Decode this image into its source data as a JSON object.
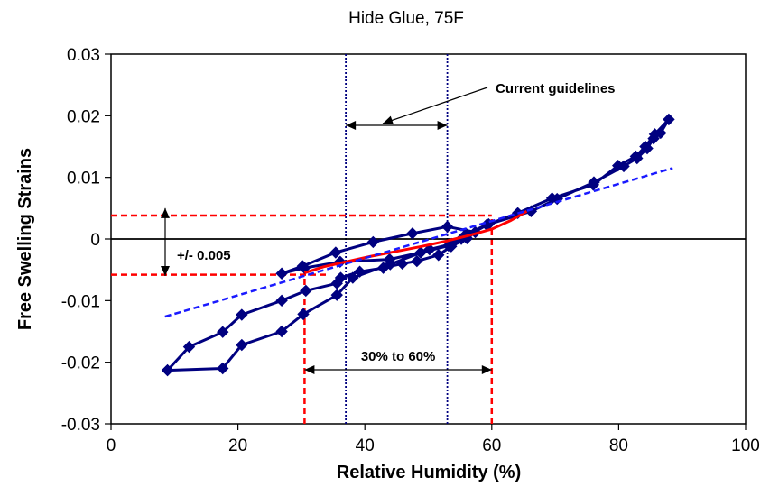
{
  "chart_data": {
    "type": "line",
    "title": "Hide Glue, 75F",
    "xlabel": "Relative Humidity (%)",
    "ylabel": "Free Swelling Strains",
    "xlim": [
      0,
      100
    ],
    "ylim": [
      -0.03,
      0.03
    ],
    "x_ticks": [
      "0",
      "20",
      "40",
      "60",
      "80",
      "100"
    ],
    "y_ticks": [
      "0.03",
      "0.02",
      "0.01",
      "0",
      "-0.01",
      "-0.02",
      "-0.03"
    ],
    "grid": false,
    "legend": "none",
    "series": [
      {
        "color": "#000080",
        "style": "line-with-diamond-markers",
        "x": [
          8.9,
          12.3,
          17.6,
          20.6,
          26.9,
          30.7,
          35.6,
          36.2,
          39.2,
          42.9,
          45.9,
          48.2,
          51.6,
          53.6,
          56.1,
          57.4,
          53.0,
          47.5,
          41.3,
          35.4,
          30.2,
          26.9,
          30.5,
          36.1,
          43.9,
          48.8,
          53.2,
          56.0,
          59.2,
          66.2,
          70.3,
          76.1,
          80.8,
          82.9,
          84.5,
          85.5,
          86.6,
          87.9,
          85.7,
          84.2,
          82.7,
          79.9,
          76.0,
          69.5,
          64.1,
          59.5,
          55.2,
          53.7,
          50.2,
          44.0,
          38.1,
          35.6,
          30.3,
          26.9,
          20.6,
          17.6,
          8.9
        ],
        "y": [
          -0.0213,
          -0.0175,
          -0.0151,
          -0.0123,
          -0.01,
          -0.0084,
          -0.0072,
          -0.0063,
          -0.0053,
          -0.0047,
          -0.004,
          -0.0036,
          -0.0026,
          -0.0012,
          0.0001,
          0.0011,
          0.002,
          0.0009,
          -0.0005,
          -0.0022,
          -0.0044,
          -0.0056,
          -0.0047,
          -0.0037,
          -0.0033,
          -0.0022,
          -0.0011,
          0.0008,
          0.0023,
          0.0045,
          0.0065,
          0.0092,
          0.0118,
          0.0131,
          0.0147,
          0.0163,
          0.0172,
          0.0194,
          0.017,
          0.015,
          0.0134,
          0.0119,
          0.0088,
          0.0066,
          0.0042,
          0.0024,
          0.0,
          -0.0008,
          -0.0017,
          -0.0041,
          -0.0063,
          -0.0091,
          -0.0122,
          -0.015,
          -0.0172,
          -0.021,
          -0.0213
        ]
      },
      {
        "color": "#ff0000",
        "style": "line",
        "x": [
          30.5,
          33.5,
          37.0,
          41.0,
          45.0,
          49.0,
          53.0,
          56.5,
          60.0,
          63.0,
          65.5
        ],
        "y": [
          -0.0055,
          -0.0045,
          -0.0037,
          -0.0028,
          -0.002,
          -0.0012,
          -0.0003,
          0.0006,
          0.0016,
          0.003,
          0.0045
        ]
      },
      {
        "color": "#1a1aff",
        "style": "dashed-linear-fit",
        "x": [
          8.5,
          88.5
        ],
        "y": [
          -0.0126,
          0.0115
        ]
      }
    ],
    "reference_lines": [
      {
        "orientation": "vertical",
        "x": 37,
        "color": "#000080",
        "style": "dotted"
      },
      {
        "orientation": "vertical",
        "x": 53,
        "color": "#000080",
        "style": "dotted"
      },
      {
        "orientation": "vertical",
        "x": 30.5,
        "ymin": -0.03,
        "ymax": -0.0055,
        "color": "#ff0000",
        "style": "dashed"
      },
      {
        "orientation": "vertical",
        "x": 60,
        "ymin": -0.03,
        "ymax": 0.0038,
        "color": "#ff0000",
        "style": "dashed"
      },
      {
        "orientation": "horizontal",
        "y": 0.0038,
        "xmin": 0,
        "xmax": 60,
        "color": "#ff0000",
        "style": "dashed"
      },
      {
        "orientation": "horizontal",
        "y": -0.0058,
        "xmin": 0,
        "xmax": 34,
        "color": "#ff0000",
        "style": "dashed"
      },
      {
        "orientation": "horizontal",
        "y": 0,
        "xmin": 0,
        "xmax": 100,
        "color": "#000000",
        "style": "solid"
      }
    ],
    "annotations": [
      {
        "text": "Current guidelines",
        "points_to": "37 to 53 % RH band"
      },
      {
        "text": "+/- 0.005",
        "points_to": "strain band around 0"
      },
      {
        "text": "30% to 60%",
        "points_to": "30 to 60 % RH range"
      }
    ]
  }
}
